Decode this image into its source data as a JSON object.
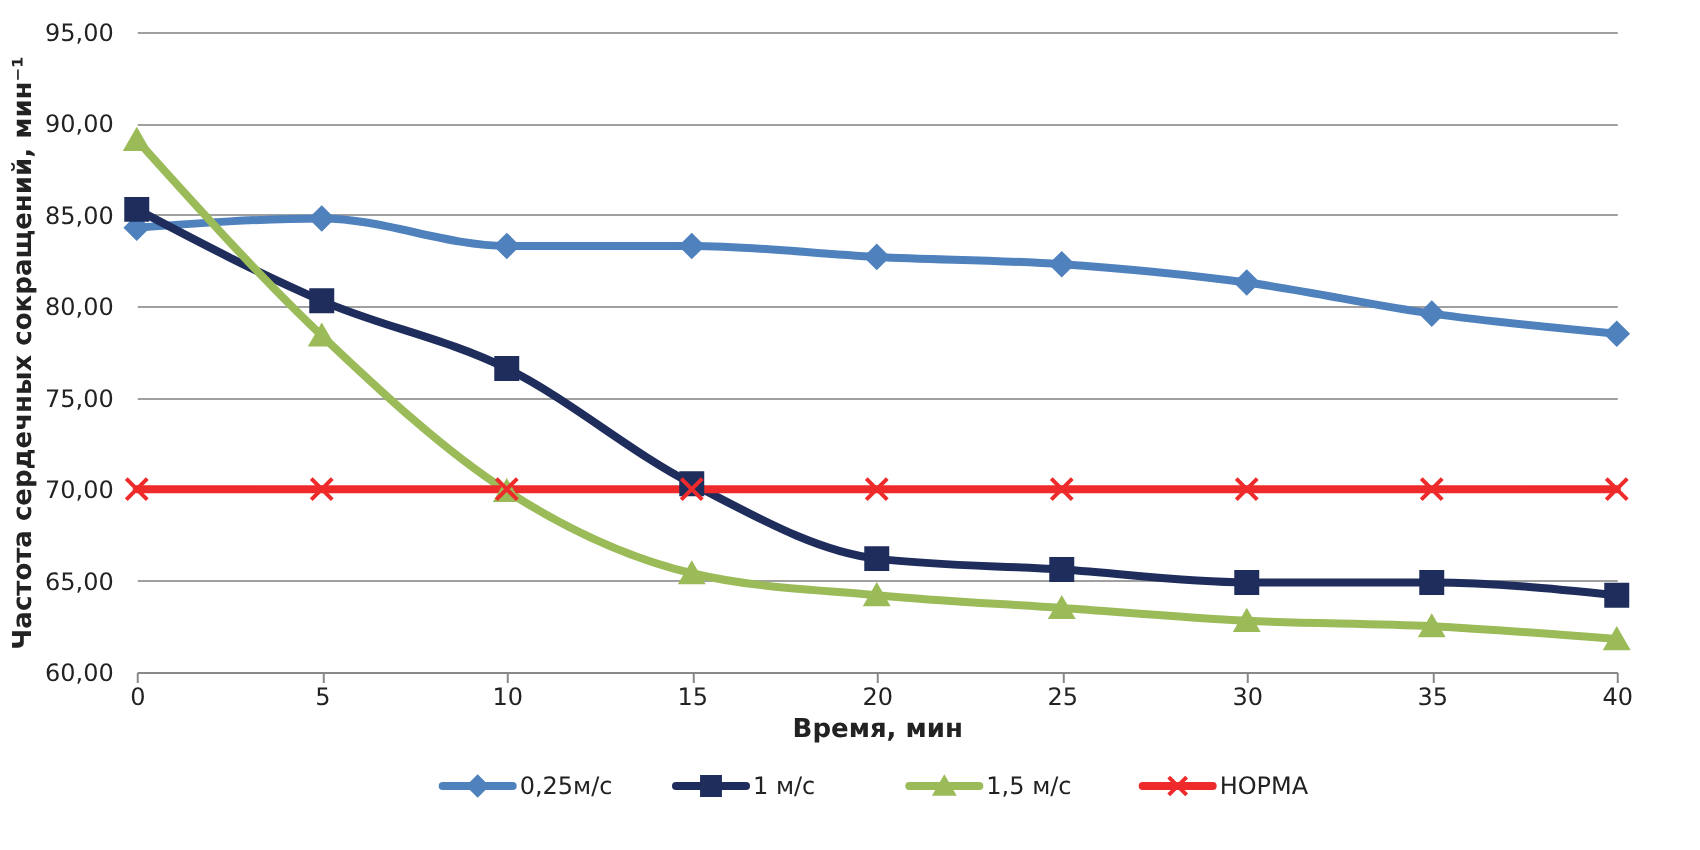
{
  "chart_data": {
    "type": "line",
    "xlabel": "Время, мин",
    "ylabel": "Частота сердечных сокращений, мин⁻¹",
    "x": [
      0,
      5,
      10,
      15,
      20,
      25,
      30,
      35,
      40
    ],
    "series": [
      {
        "name": "0,25м/с",
        "color": "#4f81bd",
        "marker": "diamond",
        "values": [
          84.3,
          84.8,
          83.3,
          83.3,
          82.7,
          82.3,
          81.3,
          79.6,
          78.5
        ]
      },
      {
        "name": "1 м/с",
        "color": "#1f2d5c",
        "marker": "square",
        "values": [
          85.3,
          80.3,
          76.6,
          70.3,
          66.2,
          65.6,
          64.9,
          64.9,
          64.2
        ]
      },
      {
        "name": "1,5 м/с",
        "color": "#9bbb59",
        "marker": "triangle",
        "values": [
          89.1,
          78.4,
          69.9,
          65.4,
          64.2,
          63.5,
          62.8,
          62.5,
          61.8
        ]
      },
      {
        "name": "НОРМА",
        "color": "#ee2a2a",
        "marker": "cross",
        "values": [
          70,
          70,
          70,
          70,
          70,
          70,
          70,
          70,
          70
        ]
      }
    ],
    "xlim": [
      0,
      40
    ],
    "xticks": [
      0,
      5,
      10,
      15,
      20,
      25,
      30,
      35,
      40
    ],
    "ylim": [
      60,
      95
    ],
    "yticks": [
      {
        "value": 60,
        "label": "60,00"
      },
      {
        "value": 65,
        "label": "65,00"
      },
      {
        "value": 70,
        "label": "70,00"
      },
      {
        "value": 75,
        "label": "75,00"
      },
      {
        "value": 80,
        "label": "80,00"
      },
      {
        "value": 85,
        "label": "85,00"
      },
      {
        "value": 90,
        "label": "90,00"
      },
      {
        "value": 95,
        "label": "95,00"
      }
    ],
    "grid": "y",
    "legend": "bottom",
    "line_style": "solid"
  }
}
